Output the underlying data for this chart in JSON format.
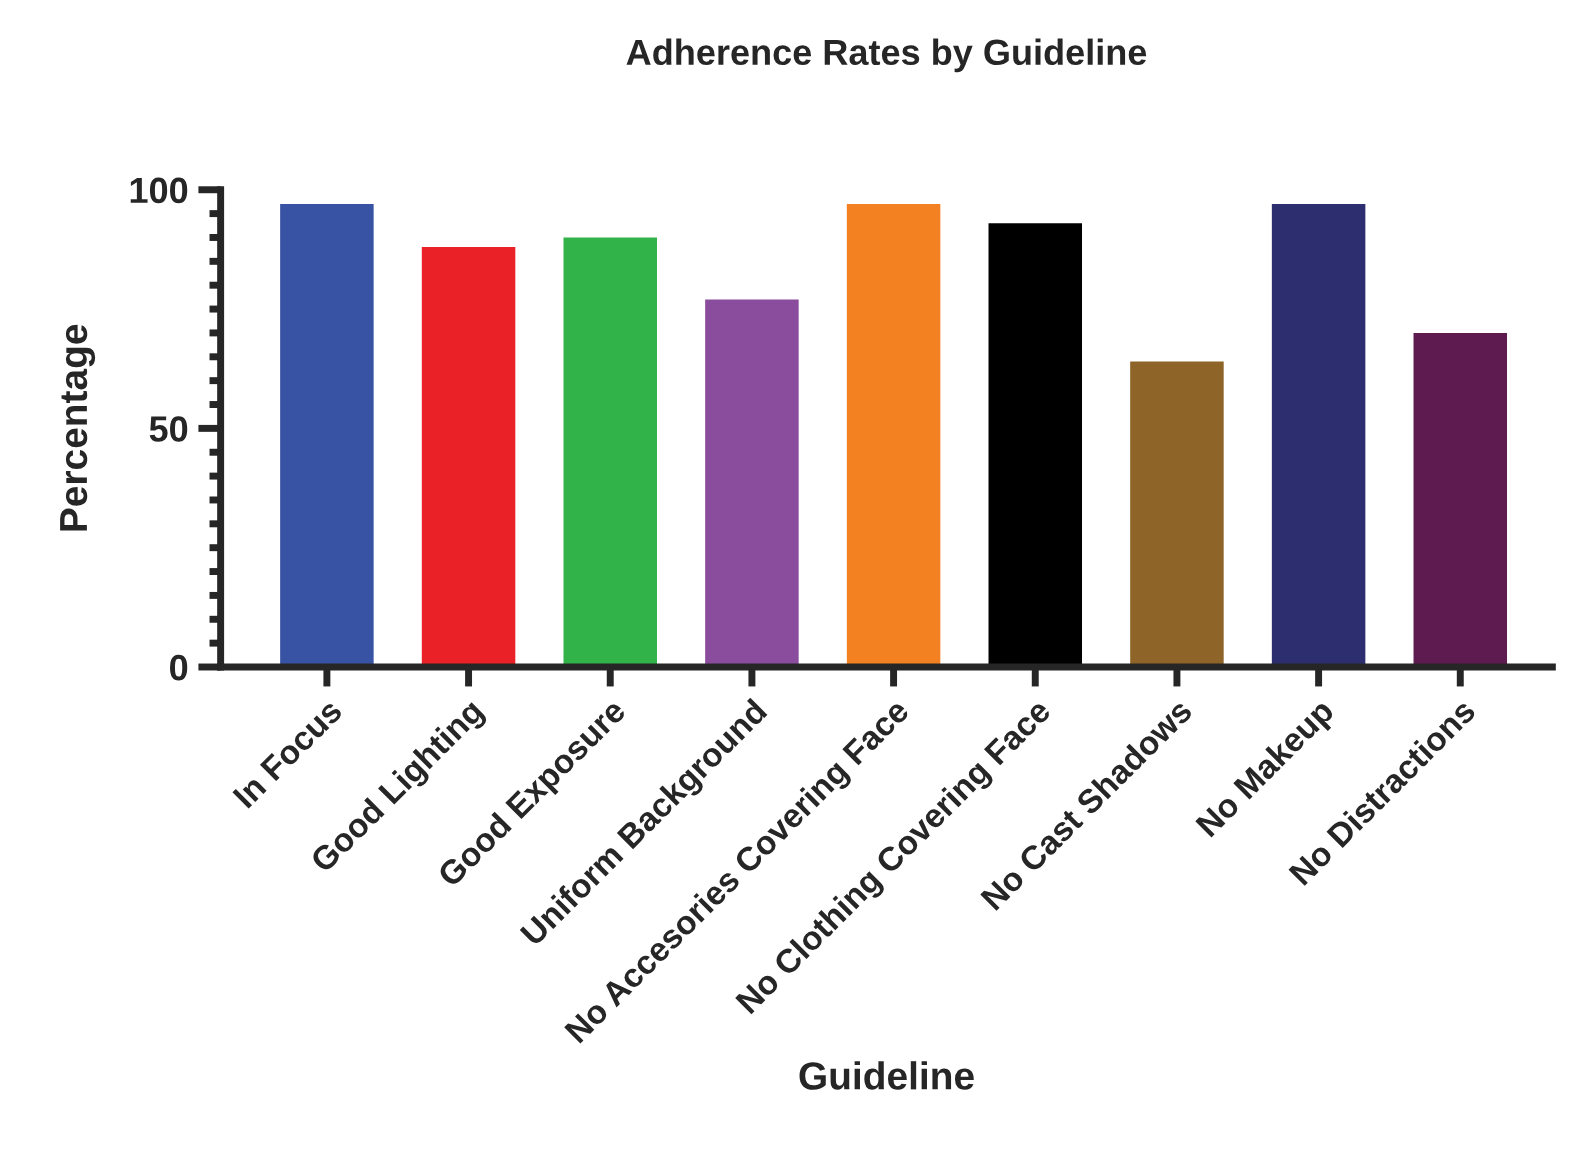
{
  "chart_data": {
    "type": "bar",
    "title": "Adherence Rates by Guideline",
    "xlabel": "Guideline",
    "ylabel": "Percentage",
    "categories": [
      "In Focus",
      "Good Lighting",
      "Good Exposure",
      "Uniform Background",
      "No Accesories Covering Face",
      "No Clothing Covering Face",
      "No Cast Shadows",
      "No Makeup",
      "No Distractions"
    ],
    "values": [
      97,
      88,
      90,
      77,
      97,
      93,
      64,
      97,
      70
    ],
    "colors": [
      "#3953a4",
      "#ea2227",
      "#32b34a",
      "#8a4c9c",
      "#f38121",
      "#000000",
      "#8f6428",
      "#2d2e6f",
      "#5e1b4f"
    ],
    "ylim": [
      0,
      100
    ],
    "yticks": [
      0,
      {
        "value": 5,
        "label": null
      },
      {
        "value": 10,
        "label": null
      },
      {
        "value": 15,
        "label": null
      },
      {
        "value": 20,
        "label": null
      },
      {
        "value": 25,
        "label": null
      },
      {
        "value": 30,
        "label": null
      },
      {
        "value": 35,
        "label": null
      },
      {
        "value": 40,
        "label": null
      },
      {
        "value": 45,
        "label": null
      },
      50,
      {
        "value": 55,
        "label": null
      },
      {
        "value": 60,
        "label": null
      },
      {
        "value": 65,
        "label": null
      },
      {
        "value": 70,
        "label": null
      },
      {
        "value": 75,
        "label": null
      },
      {
        "value": 80,
        "label": null
      },
      {
        "value": 85,
        "label": null
      },
      {
        "value": 90,
        "label": null
      },
      {
        "value": 95,
        "label": null
      },
      100
    ],
    "grid": false,
    "legend": false
  }
}
